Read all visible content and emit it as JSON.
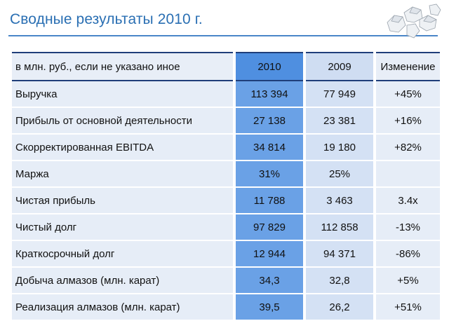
{
  "slide": {
    "title": "Сводные результаты 2010 г."
  },
  "table": {
    "header": {
      "label": "в млн. руб., если не указано иное",
      "col2010": "2010",
      "col2009": "2009",
      "change": "Изменение"
    },
    "rows": [
      {
        "label": "Выручка",
        "v2010": "113 394",
        "v2009": "77 949",
        "change": "+45%"
      },
      {
        "label": "Прибыль от основной деятельности",
        "v2010": "27 138",
        "v2009": "23 381",
        "change": "+16%"
      },
      {
        "label": "Скорректированная EBITDA",
        "v2010": "34 814",
        "v2009": "19 180",
        "change": "+82%"
      },
      {
        "label": "Маржа",
        "v2010": "31%",
        "v2009": "25%",
        "change": ""
      },
      {
        "label": "Чистая прибыль",
        "v2010": "11 788",
        "v2009": "3 463",
        "change": "3.4x"
      },
      {
        "label": "Чистый долг",
        "v2010": "97 829",
        "v2009": "112 858",
        "change": "-13%"
      },
      {
        "label": "Краткосрочный долг",
        "v2010": "12 944",
        "v2009": "94 371",
        "change": "-86%"
      },
      {
        "label": "Добыча алмазов (млн. карат)",
        "v2010": "34,3",
        "v2009": "32,8",
        "change": "+5%"
      },
      {
        "label": "Реализация алмазов (млн. карат)",
        "v2010": "39,5",
        "v2009": "26,2",
        "change": "+51%"
      }
    ]
  }
}
